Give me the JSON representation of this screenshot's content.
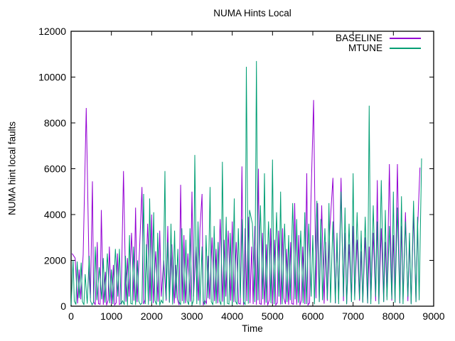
{
  "window": {
    "background": "#ffffff"
  },
  "chart_data": {
    "type": "line",
    "title": "NUMA Hints Local",
    "xlabel": "Time",
    "ylabel": "NUMA hint local faults",
    "xlim": [
      0,
      9000
    ],
    "ylim": [
      0,
      12000
    ],
    "xticks": [
      0,
      1000,
      2000,
      3000,
      4000,
      5000,
      6000,
      7000,
      8000,
      9000
    ],
    "yticks": [
      0,
      2000,
      4000,
      6000,
      8000,
      10000,
      12000
    ],
    "grid": false,
    "legend_position": "top-right-inside",
    "axis_color": "#000000",
    "text_color": "#000000",
    "data_end": 8700,
    "noise": {
      "step": 40,
      "skip_near_spike": 25,
      "pattern": [
        60,
        180,
        40,
        260,
        120,
        90,
        300,
        50,
        150,
        220,
        70,
        130,
        350,
        90,
        200,
        60,
        420,
        110,
        80,
        240
      ]
    },
    "series": [
      {
        "name": "BASELINE",
        "color": "#9400d3",
        "spikes": [
          [
            25,
            2300
          ],
          [
            100,
            2100
          ],
          [
            200,
            1600
          ],
          [
            300,
            2250
          ],
          [
            375,
            8650
          ],
          [
            450,
            1200
          ],
          [
            530,
            5450
          ],
          [
            650,
            2800
          ],
          [
            750,
            4200
          ],
          [
            850,
            1500
          ],
          [
            950,
            2600
          ],
          [
            1050,
            1800
          ],
          [
            1150,
            2300
          ],
          [
            1300,
            5900
          ],
          [
            1400,
            2100
          ],
          [
            1500,
            3200
          ],
          [
            1600,
            4300
          ],
          [
            1700,
            2500
          ],
          [
            1760,
            5200
          ],
          [
            1900,
            3600
          ],
          [
            2000,
            4000
          ],
          [
            2100,
            2400
          ],
          [
            2200,
            3300
          ],
          [
            2300,
            2000
          ],
          [
            2400,
            3500
          ],
          [
            2500,
            2700
          ],
          [
            2600,
            1800
          ],
          [
            2720,
            5300
          ],
          [
            2800,
            3100
          ],
          [
            2900,
            2300
          ],
          [
            3000,
            5000
          ],
          [
            3100,
            2600
          ],
          [
            3200,
            3400
          ],
          [
            3250,
            4900
          ],
          [
            3400,
            2200
          ],
          [
            3500,
            3000
          ],
          [
            3600,
            2500
          ],
          [
            3700,
            3800
          ],
          [
            3800,
            2900
          ],
          [
            3900,
            3300
          ],
          [
            4000,
            3700
          ],
          [
            4100,
            2800
          ],
          [
            4240,
            6100
          ],
          [
            4320,
            3400
          ],
          [
            4400,
            3900
          ],
          [
            4480,
            2600
          ],
          [
            4560,
            3500
          ],
          [
            4650,
            6000
          ],
          [
            4750,
            3200
          ],
          [
            4850,
            2700
          ],
          [
            4950,
            3400
          ],
          [
            5050,
            2900
          ],
          [
            5150,
            3300
          ],
          [
            5250,
            3400
          ],
          [
            5350,
            2500
          ],
          [
            5450,
            2800
          ],
          [
            5550,
            4500
          ],
          [
            5650,
            3100
          ],
          [
            5750,
            2600
          ],
          [
            5850,
            5800
          ],
          [
            5950,
            4400
          ],
          [
            6020,
            9000
          ],
          [
            6120,
            4500
          ],
          [
            6220,
            4400
          ],
          [
            6320,
            2800
          ],
          [
            6420,
            3300
          ],
          [
            6500,
            5600
          ],
          [
            6600,
            3000
          ],
          [
            6700,
            5600
          ],
          [
            6800,
            3200
          ],
          [
            6900,
            2700
          ],
          [
            7000,
            3500
          ],
          [
            7100,
            2900
          ],
          [
            7200,
            2400
          ],
          [
            7300,
            3000
          ],
          [
            7400,
            2600
          ],
          [
            7500,
            3200
          ],
          [
            7600,
            5500
          ],
          [
            7700,
            3400
          ],
          [
            7800,
            2800
          ],
          [
            7900,
            6200
          ],
          [
            8000,
            3100
          ],
          [
            8100,
            6200
          ],
          [
            8200,
            3500
          ],
          [
            8300,
            4100
          ],
          [
            8400,
            2900
          ],
          [
            8500,
            4000
          ],
          [
            8600,
            3300
          ],
          [
            8660,
            6050
          ]
        ]
      },
      {
        "name": "MTUNE",
        "color": "#009e73",
        "spikes": [
          [
            50,
            2000
          ],
          [
            150,
            1950
          ],
          [
            250,
            1900
          ],
          [
            350,
            1400
          ],
          [
            450,
            2200
          ],
          [
            600,
            2600
          ],
          [
            700,
            1700
          ],
          [
            800,
            2100
          ],
          [
            900,
            2300
          ],
          [
            1000,
            1600
          ],
          [
            1100,
            2500
          ],
          [
            1200,
            2500
          ],
          [
            1350,
            2200
          ],
          [
            1450,
            3100
          ],
          [
            1550,
            2600
          ],
          [
            1650,
            2000
          ],
          [
            1800,
            4900
          ],
          [
            1870,
            2700
          ],
          [
            1950,
            4700
          ],
          [
            2050,
            4100
          ],
          [
            2150,
            3200
          ],
          [
            2330,
            5900
          ],
          [
            2400,
            2800
          ],
          [
            2480,
            3600
          ],
          [
            2570,
            3300
          ],
          [
            2650,
            2500
          ],
          [
            2750,
            3400
          ],
          [
            2850,
            2900
          ],
          [
            2950,
            3400
          ],
          [
            3070,
            6600
          ],
          [
            3150,
            3700
          ],
          [
            3250,
            2600
          ],
          [
            3350,
            3100
          ],
          [
            3450,
            5200
          ],
          [
            3550,
            3500
          ],
          [
            3650,
            2800
          ],
          [
            3755,
            6300
          ],
          [
            3850,
            3900
          ],
          [
            3950,
            3200
          ],
          [
            4050,
            4700
          ],
          [
            4150,
            3400
          ],
          [
            4250,
            3800
          ],
          [
            4350,
            10450
          ],
          [
            4430,
            4200
          ],
          [
            4500,
            3600
          ],
          [
            4600,
            10700
          ],
          [
            4700,
            4400
          ],
          [
            4800,
            5800
          ],
          [
            4900,
            3700
          ],
          [
            5000,
            6400
          ],
          [
            5100,
            4100
          ],
          [
            5200,
            5000
          ],
          [
            5300,
            3600
          ],
          [
            5400,
            3100
          ],
          [
            5500,
            4500
          ],
          [
            5600,
            3800
          ],
          [
            5700,
            3300
          ],
          [
            5800,
            4100
          ],
          [
            5900,
            3600
          ],
          [
            6000,
            3100
          ],
          [
            6100,
            4600
          ],
          [
            6200,
            3800
          ],
          [
            6300,
            3400
          ],
          [
            6400,
            4500
          ],
          [
            6500,
            3700
          ],
          [
            6600,
            3200
          ],
          [
            6700,
            5000
          ],
          [
            6800,
            4300
          ],
          [
            6900,
            3600
          ],
          [
            7000,
            5800
          ],
          [
            7100,
            4100
          ],
          [
            7200,
            3300
          ],
          [
            7300,
            3900
          ],
          [
            7400,
            8750
          ],
          [
            7500,
            4400
          ],
          [
            7600,
            3700
          ],
          [
            7700,
            5500
          ],
          [
            7800,
            4200
          ],
          [
            7900,
            3500
          ],
          [
            8000,
            5000
          ],
          [
            8100,
            4300
          ],
          [
            8200,
            4800
          ],
          [
            8300,
            3700
          ],
          [
            8400,
            3200
          ],
          [
            8500,
            4600
          ],
          [
            8600,
            3900
          ],
          [
            8700,
            6450
          ]
        ]
      }
    ]
  }
}
